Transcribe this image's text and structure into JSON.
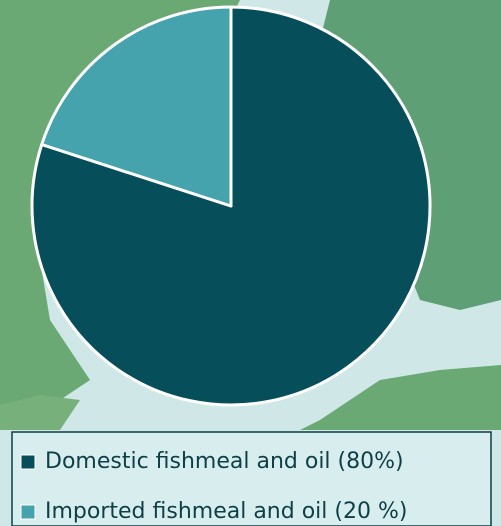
{
  "chart_data": {
    "type": "pie",
    "categories": [
      "Domestic fishmeal and oil (80%)",
      "Imported fishmeal and oil (20 %)"
    ],
    "values": [
      80,
      20
    ],
    "colors": [
      "#064e5a",
      "#44a3ad"
    ]
  }
}
